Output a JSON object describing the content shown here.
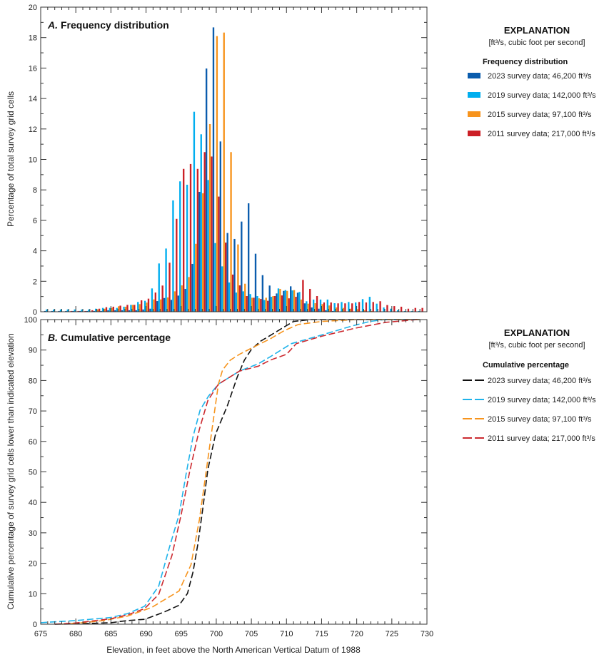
{
  "chart_data": [
    {
      "type": "bar",
      "panel_letter": "A.",
      "title": "Frequency distribution",
      "ylabel": "Percentage of total survey grid cells",
      "xlabel": "Elevation, in feet above the North American Vertical Datum of 1988",
      "xlim": [
        675,
        730
      ],
      "ylim": [
        0,
        20
      ],
      "y_ticks": [
        0,
        2,
        4,
        6,
        8,
        10,
        12,
        14,
        16,
        18,
        20
      ],
      "x_ticks": [
        675,
        680,
        685,
        690,
        695,
        700,
        705,
        710,
        715,
        720,
        725,
        730
      ],
      "grid": false,
      "legend_placement": "right",
      "legend": {
        "heading": "EXPLANATION",
        "note": "[ft³/s, cubic foot per second]",
        "subheading": "Frequency distribution"
      },
      "categories": [
        676,
        677,
        678,
        679,
        680,
        681,
        682,
        683,
        684,
        685,
        686,
        687,
        688,
        689,
        690,
        691,
        692,
        693,
        694,
        695,
        696,
        697,
        698,
        699,
        700,
        701,
        702,
        703,
        704,
        705,
        706,
        707,
        708,
        709,
        710,
        711,
        712,
        713,
        714,
        715,
        716,
        717,
        718,
        719,
        720,
        721,
        722,
        723,
        724,
        725,
        726,
        727,
        728,
        729
      ],
      "series": [
        {
          "name": "2023 survey data; 46,200 ft³/s",
          "color": "#0a5cad",
          "values": [
            0.05,
            0.05,
            0.05,
            0.05,
            0.05,
            0.05,
            0.05,
            0.05,
            0.05,
            0.1,
            0.1,
            0.1,
            0.1,
            0.1,
            0.15,
            0.2,
            0.7,
            0.9,
            0.78,
            1.06,
            1.5,
            3.14,
            7.87,
            15.97,
            18.67,
            11.18,
            5.17,
            4.78,
            5.92,
            7.12,
            3.81,
            2.4,
            1.72,
            1.2,
            1.37,
            1.67,
            1.25,
            0.55,
            0.28,
            0.2,
            0.1,
            0.05,
            0,
            0,
            0,
            0,
            0,
            0,
            0,
            0,
            0,
            0,
            0,
            0
          ]
        },
        {
          "name": "2019 survey data; 142,000 ft³/s",
          "color": "#00aeef",
          "values": [
            0.15,
            0.15,
            0.15,
            0.15,
            0.15,
            0.15,
            0.15,
            0.2,
            0.25,
            0.25,
            0.25,
            0.33,
            0.45,
            0.64,
            0.72,
            1.53,
            3.17,
            4.15,
            7.31,
            8.56,
            8.34,
            13.13,
            11.65,
            8.65,
            4.51,
            2.98,
            1.92,
            1.26,
            1.34,
            1.16,
            1.03,
            0.77,
            0.98,
            1.53,
            1.42,
            1.4,
            1.3,
            0.69,
            0.8,
            0.8,
            0.8,
            0.56,
            0.64,
            0.64,
            0.61,
            0.83,
            0.98,
            0.53,
            0.28,
            0.2,
            0.1,
            0.05,
            0.05,
            0.05
          ]
        },
        {
          "name": "2015 survey data; 97,100 ft³/s",
          "color": "#f7941d",
          "values": [
            0,
            0,
            0,
            0,
            0,
            0,
            0,
            0.15,
            0.2,
            0.25,
            0.36,
            0.33,
            0.45,
            0.5,
            0.6,
            0.81,
            0.81,
            0.94,
            1.34,
            1.73,
            2.28,
            4.46,
            7.78,
            12.32,
            18.1,
            18.33,
            10.48,
            4.42,
            1.84,
            0.92,
            0.88,
            0.92,
            1.03,
            1.5,
            1.37,
            1.42,
            0.8,
            0.53,
            0.56,
            0.5,
            0.41,
            0.28,
            0.25,
            0.2,
            0.17,
            0.1,
            0.05,
            0,
            0,
            0,
            0,
            0,
            0,
            0
          ]
        },
        {
          "name": "2011 survey data; 217,000 ft³/s",
          "color": "#cc1f26",
          "values": [
            0.02,
            0.02,
            0.02,
            0.05,
            0.05,
            0.05,
            0.1,
            0.2,
            0.3,
            0.33,
            0.4,
            0.45,
            0.45,
            0.75,
            0.86,
            1.26,
            1.72,
            3.22,
            6.1,
            9.38,
            9.7,
            9.38,
            10.48,
            10.19,
            7.56,
            4.54,
            2.44,
            1.73,
            1.03,
            0.92,
            0.84,
            0.72,
            1.03,
            1.07,
            0.88,
            0.98,
            2.09,
            1.5,
            1.03,
            0.61,
            0.61,
            0.55,
            0.55,
            0.55,
            0.64,
            0.61,
            0.64,
            0.69,
            0.44,
            0.37,
            0.33,
            0.2,
            0.25,
            0.25
          ]
        }
      ]
    },
    {
      "type": "line",
      "panel_letter": "B.",
      "title": "Cumulative percentage",
      "ylabel": "Cumulative percentage of survey grid cells lower than indicated elevation",
      "xlabel": "Elevation, in feet above the North American Vertical Datum of 1988",
      "xlim": [
        675,
        730
      ],
      "ylim": [
        0,
        100
      ],
      "y_ticks": [
        0,
        10,
        20,
        30,
        40,
        50,
        60,
        70,
        80,
        90,
        100
      ],
      "x_ticks": [
        675,
        680,
        685,
        690,
        695,
        700,
        705,
        710,
        715,
        720,
        725,
        730
      ],
      "grid": false,
      "line_style": "dashed",
      "legend_placement": "right",
      "legend": {
        "heading": "EXPLANATION",
        "note": "[ft³/s, cubic foot per second]",
        "subheading": "Cumulative percentage"
      },
      "series": [
        {
          "name": "2023 survey data; 46,200 ft³/s",
          "color": "#111111",
          "points": [
            [
              677,
              0
            ],
            [
              680,
              0.1
            ],
            [
              685,
              0.5
            ],
            [
              687.4,
              1.2
            ],
            [
              689.8,
              1.6
            ],
            [
              692.5,
              3.9
            ],
            [
              694.7,
              6.2
            ],
            [
              695.9,
              10.1
            ],
            [
              696.7,
              17.2
            ],
            [
              697.4,
              26.5
            ],
            [
              698.1,
              38.2
            ],
            [
              698.8,
              50.7
            ],
            [
              699.9,
              62.4
            ],
            [
              701.6,
              71.8
            ],
            [
              703,
              81.2
            ],
            [
              704,
              86.7
            ],
            [
              705,
              90.2
            ],
            [
              706.3,
              92.9
            ],
            [
              707.7,
              94.8
            ],
            [
              709.7,
              97.6
            ],
            [
              711,
              99.4
            ],
            [
              713.4,
              100
            ],
            [
              729,
              100
            ]
          ]
        },
        {
          "name": "2019 survey data; 142,000 ft³/s",
          "color": "#1fb3ea",
          "points": [
            [
              675,
              0.5
            ],
            [
              680,
              1.2
            ],
            [
              685,
              2.2
            ],
            [
              687.4,
              3.5
            ],
            [
              689.8,
              5.9
            ],
            [
              691.8,
              12.5
            ],
            [
              693.3,
              25
            ],
            [
              694.7,
              35.9
            ],
            [
              695.7,
              49.2
            ],
            [
              696.7,
              61.6
            ],
            [
              697.7,
              70.3
            ],
            [
              698.9,
              74.9
            ],
            [
              700.3,
              78.8
            ],
            [
              703.3,
              83.1
            ],
            [
              706,
              85.5
            ],
            [
              707.7,
              87.8
            ],
            [
              710.7,
              92.1
            ],
            [
              714.8,
              94.8
            ],
            [
              719.5,
              98
            ],
            [
              721.9,
              99.4
            ],
            [
              724,
              100
            ],
            [
              729,
              100
            ]
          ]
        },
        {
          "name": "2015 survey data; 97,100 ft³/s",
          "color": "#f7941d",
          "points": [
            [
              678,
              0
            ],
            [
              681,
              0.5
            ],
            [
              684,
              1.2
            ],
            [
              687.4,
              2.7
            ],
            [
              690.8,
              5.5
            ],
            [
              694.7,
              10.9
            ],
            [
              696.4,
              19.5
            ],
            [
              697.6,
              34.3
            ],
            [
              698.6,
              50.7
            ],
            [
              699.4,
              64
            ],
            [
              700.3,
              78.8
            ],
            [
              700.9,
              83.5
            ],
            [
              702,
              86.7
            ],
            [
              703.3,
              88.6
            ],
            [
              705,
              90.6
            ],
            [
              707.7,
              93.7
            ],
            [
              709.7,
              96.4
            ],
            [
              711.7,
              98.4
            ],
            [
              715,
              99.4
            ],
            [
              720,
              100
            ],
            [
              729,
              100
            ]
          ]
        },
        {
          "name": "2011 survey data; 217,000 ft³/s",
          "color": "#cc2a30",
          "points": [
            [
              677,
              0
            ],
            [
              680,
              0.4
            ],
            [
              685,
              1.8
            ],
            [
              687.4,
              3.1
            ],
            [
              689.8,
              5.1
            ],
            [
              691.8,
              9.8
            ],
            [
              693.7,
              22.6
            ],
            [
              695,
              35.9
            ],
            [
              696.2,
              49.9
            ],
            [
              697.6,
              64
            ],
            [
              698.8,
              73.4
            ],
            [
              700.3,
              78.8
            ],
            [
              703.3,
              83.1
            ],
            [
              706,
              84.7
            ],
            [
              707.7,
              86.7
            ],
            [
              710,
              88.6
            ],
            [
              711.4,
              92.1
            ],
            [
              715.1,
              94.6
            ],
            [
              719.8,
              97.2
            ],
            [
              724.2,
              99.1
            ],
            [
              728.6,
              100
            ],
            [
              729,
              100
            ]
          ]
        }
      ]
    }
  ]
}
